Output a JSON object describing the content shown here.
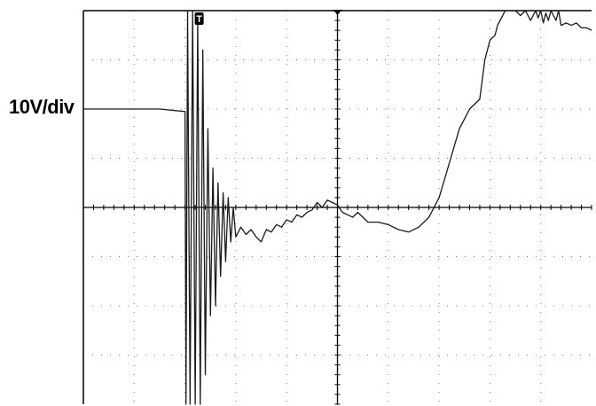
{
  "scale_label": "10V/div",
  "trigger_label": "T",
  "colors": {
    "trace": "#1a1a1a",
    "grid": "#7a7a7a",
    "axis": "#000000",
    "background": "#ffffff"
  },
  "chart_data": {
    "type": "line",
    "title": "",
    "xlabel": "",
    "ylabel": "",
    "grid": true,
    "xlim": [
      0,
      10
    ],
    "ylim": [
      -4,
      4
    ],
    "x_divisions": 10,
    "y_divisions": 8,
    "volts_per_div": 10,
    "trigger_x": 2.0,
    "trigger_marker_x": 5.0,
    "series": [
      {
        "x": [
          0.0,
          0.5,
          1.0,
          1.5,
          2.0,
          2.02,
          2.05,
          2.1,
          2.15,
          2.2,
          2.25,
          2.3,
          2.35,
          2.4,
          2.45,
          2.5,
          2.55,
          2.6,
          2.65,
          2.7,
          2.75,
          2.8,
          2.85,
          2.9,
          2.95,
          3.0,
          3.1,
          3.2,
          3.3,
          3.4,
          3.5,
          3.6,
          3.7,
          3.8,
          3.9,
          4.0,
          4.1,
          4.2,
          4.3,
          4.4,
          4.5,
          4.6,
          4.7,
          4.8,
          4.9,
          5.0,
          5.1,
          5.2,
          5.3,
          5.4,
          5.5,
          5.6,
          5.8,
          6.0,
          6.2,
          6.4,
          6.6,
          6.8,
          7.0,
          7.2,
          7.4,
          7.6,
          7.8,
          7.9,
          8.0,
          8.1,
          8.15,
          8.2,
          8.3,
          8.4,
          8.5,
          8.6,
          8.7,
          8.8,
          8.9,
          8.95,
          9.0,
          9.05,
          9.1,
          9.15,
          9.2,
          9.25,
          9.3,
          9.35,
          9.4,
          9.5,
          9.6,
          9.7,
          9.8,
          9.9,
          10.0
        ],
        "y": [
          2.0,
          2.0,
          2.0,
          2.0,
          1.95,
          -4.0,
          4.0,
          -4.0,
          4.0,
          -4.0,
          3.8,
          -4.0,
          3.2,
          -3.4,
          1.6,
          -2.2,
          0.8,
          -2.0,
          0.5,
          -1.4,
          0.3,
          -1.1,
          0.2,
          -0.7,
          0.0,
          -0.6,
          -0.4,
          -0.55,
          -0.45,
          -0.6,
          -0.7,
          -0.45,
          -0.5,
          -0.35,
          -0.4,
          -0.25,
          -0.3,
          -0.15,
          -0.2,
          -0.1,
          -0.05,
          0.1,
          0.0,
          0.15,
          0.1,
          0.05,
          -0.1,
          -0.15,
          -0.2,
          -0.1,
          -0.2,
          -0.3,
          -0.3,
          -0.35,
          -0.45,
          -0.5,
          -0.4,
          -0.2,
          0.2,
          0.9,
          1.6,
          2.0,
          2.2,
          3.0,
          3.4,
          3.5,
          3.7,
          3.8,
          4.0,
          4.0,
          4.0,
          3.9,
          4.0,
          3.8,
          4.0,
          3.85,
          4.0,
          3.75,
          3.95,
          3.8,
          4.0,
          3.9,
          3.8,
          4.0,
          3.7,
          3.75,
          3.7,
          3.75,
          3.65,
          3.65,
          3.6
        ]
      }
    ]
  }
}
